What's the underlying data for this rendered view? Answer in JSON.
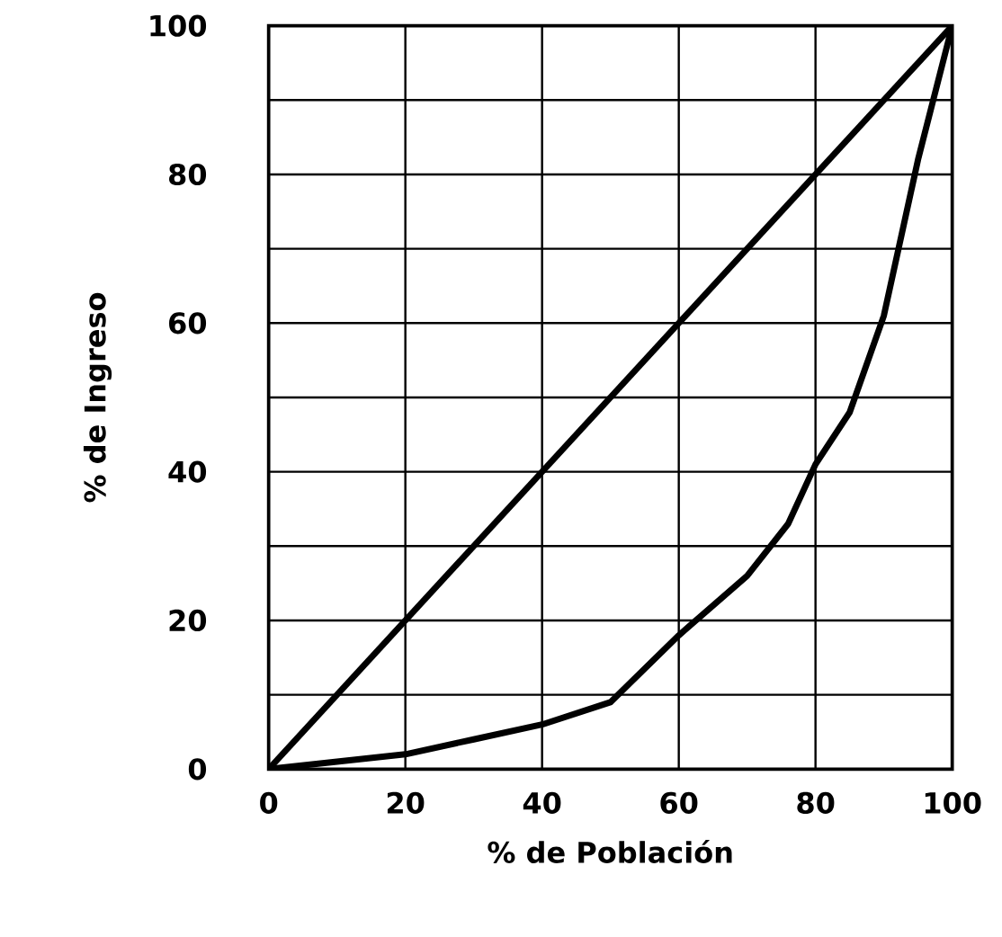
{
  "chart_data": {
    "type": "line",
    "xlabel": "% de Población",
    "ylabel": "% de Ingreso",
    "series": [
      {
        "color": "#000000",
        "x": [
          0,
          100
        ],
        "values": [
          0,
          100
        ]
      },
      {
        "color": "#000000",
        "x": [
          0,
          10,
          20,
          30,
          40,
          50,
          60,
          70,
          76,
          80,
          85,
          90,
          95,
          100
        ],
        "values": [
          0,
          1,
          2,
          4,
          6,
          9,
          18,
          26,
          33,
          41,
          48,
          61,
          82,
          100
        ]
      }
    ],
    "xlim": [
      0,
      100
    ],
    "ylim": [
      0,
      100
    ],
    "xticks": [
      0,
      20,
      40,
      60,
      80,
      100
    ],
    "yticks": [
      0,
      {
        "value": 10,
        "label": null
      },
      20,
      {
        "value": 30,
        "label": null
      },
      40,
      {
        "value": 50,
        "label": null
      },
      60,
      {
        "value": 70,
        "label": null
      },
      80,
      {
        "value": 90,
        "label": null
      },
      100
    ],
    "grid": true,
    "marker": "none",
    "line_style": "solid"
  }
}
